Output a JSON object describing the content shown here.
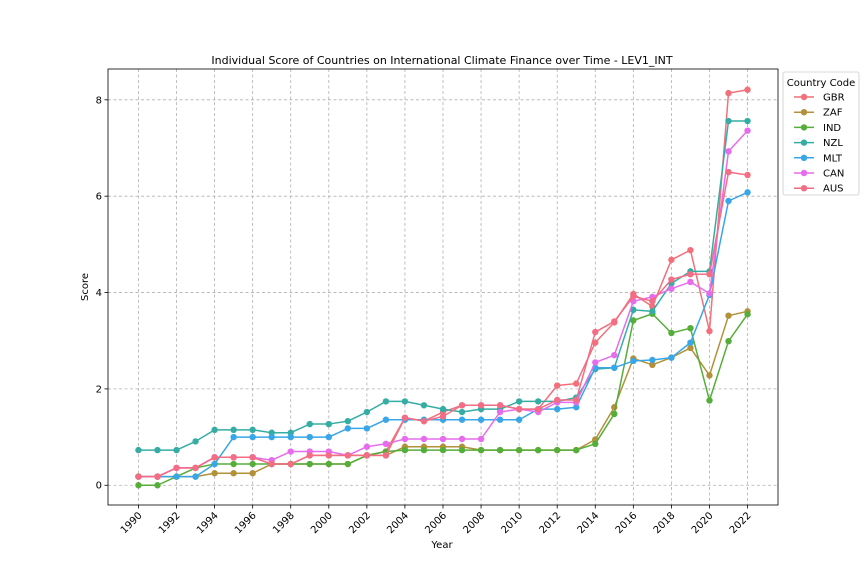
{
  "chart_data": {
    "type": "line",
    "title": "Individual Score of Countries on International Climate Finance over Time - LEV1_INT",
    "xlabel": "Year",
    "ylabel": "Score",
    "xlim": [
      1988.4,
      2023.6
    ],
    "ylim": [
      -0.41,
      8.64
    ],
    "x_ticks": [
      1990,
      1992,
      1994,
      1996,
      1998,
      2000,
      2002,
      2004,
      2006,
      2008,
      2010,
      2012,
      2014,
      2016,
      2018,
      2020,
      2022
    ],
    "x_tick_labels": [
      "1990",
      "1992",
      "1994",
      "1996",
      "1998",
      "2000",
      "2002",
      "2004",
      "2006",
      "2008",
      "2010",
      "2012",
      "2014",
      "2016",
      "2018",
      "2020",
      "2022"
    ],
    "y_ticks": [
      0,
      2,
      4,
      6,
      8
    ],
    "y_tick_labels": [
      "0",
      "2",
      "4",
      "6",
      "8"
    ],
    "grid": true,
    "legend_title": "Country Code",
    "legend_position": "outside-upper-right",
    "x": [
      1990,
      1991,
      1992,
      1993,
      1994,
      1995,
      1996,
      1997,
      1998,
      1999,
      2000,
      2001,
      2002,
      2003,
      2004,
      2005,
      2006,
      2007,
      2008,
      2009,
      2010,
      2011,
      2012,
      2013,
      2014,
      2015,
      2016,
      2017,
      2018,
      2019,
      2020,
      2021,
      2022
    ],
    "series": [
      {
        "name": "GBR",
        "color": "#f1707a",
        "values": [
          0.18,
          0.18,
          0.36,
          0.36,
          0.58,
          0.58,
          0.58,
          0.44,
          0.44,
          0.62,
          0.62,
          0.62,
          0.62,
          0.7,
          1.4,
          1.33,
          1.52,
          1.66,
          1.66,
          1.66,
          1.58,
          1.58,
          2.07,
          2.11,
          2.96,
          3.38,
          3.97,
          3.71,
          4.68,
          4.88,
          3.2,
          8.14,
          8.21
        ]
      },
      {
        "name": "ZAF",
        "color": "#b3913a",
        "values": [
          0.18,
          0.18,
          0.18,
          0.18,
          0.25,
          0.25,
          0.25,
          0.44,
          0.44,
          0.44,
          0.44,
          0.44,
          0.62,
          0.62,
          0.8,
          0.8,
          0.8,
          0.8,
          0.73,
          0.73,
          0.73,
          0.73,
          0.73,
          0.73,
          0.95,
          1.62,
          2.63,
          2.5,
          2.65,
          2.85,
          2.28,
          3.52,
          3.61
        ]
      },
      {
        "name": "IND",
        "color": "#55ae3a",
        "values": [
          0.0,
          0.0,
          0.18,
          0.36,
          0.44,
          0.44,
          0.44,
          0.44,
          0.44,
          0.44,
          0.44,
          0.44,
          0.62,
          0.7,
          0.73,
          0.73,
          0.73,
          0.73,
          0.73,
          0.73,
          0.73,
          0.73,
          0.73,
          0.73,
          0.86,
          1.48,
          3.42,
          3.56,
          3.16,
          3.26,
          1.76,
          2.99,
          3.55
        ]
      },
      {
        "name": "NZL",
        "color": "#36ada4",
        "values": [
          0.73,
          0.73,
          0.73,
          0.91,
          1.15,
          1.15,
          1.15,
          1.09,
          1.09,
          1.27,
          1.27,
          1.33,
          1.52,
          1.74,
          1.74,
          1.66,
          1.58,
          1.52,
          1.58,
          1.58,
          1.74,
          1.74,
          1.74,
          1.82,
          2.41,
          2.44,
          3.64,
          3.61,
          4.19,
          4.44,
          4.44,
          7.56,
          7.56
        ]
      },
      {
        "name": "MLT",
        "color": "#38a6e7",
        "values": [
          0.18,
          0.18,
          0.18,
          0.18,
          0.44,
          1.0,
          1.0,
          1.0,
          1.0,
          1.0,
          1.0,
          1.18,
          1.18,
          1.36,
          1.36,
          1.36,
          1.36,
          1.36,
          1.36,
          1.36,
          1.36,
          1.58,
          1.58,
          1.62,
          2.44,
          2.44,
          2.58,
          2.6,
          2.65,
          2.96,
          3.95,
          5.9,
          6.08
        ]
      },
      {
        "name": "CAN",
        "color": "#e66ced",
        "values": [
          0.18,
          0.18,
          0.36,
          0.36,
          0.58,
          0.58,
          0.58,
          0.52,
          0.7,
          0.7,
          0.7,
          0.62,
          0.8,
          0.86,
          0.96,
          0.96,
          0.96,
          0.96,
          0.96,
          1.52,
          1.58,
          1.52,
          1.72,
          1.72,
          2.55,
          2.7,
          3.82,
          3.91,
          4.08,
          4.22,
          3.98,
          6.93,
          7.36
        ]
      },
      {
        "name": "AUS",
        "color": "#f36d85",
        "values": [
          0.18,
          0.18,
          0.36,
          0.36,
          0.58,
          0.58,
          0.58,
          0.44,
          0.44,
          0.62,
          0.62,
          0.62,
          0.62,
          0.62,
          1.4,
          1.33,
          1.43,
          1.66,
          1.66,
          1.66,
          1.58,
          1.58,
          1.77,
          1.77,
          3.18,
          3.4,
          3.92,
          3.82,
          4.27,
          4.38,
          4.38,
          6.5,
          6.44
        ]
      }
    ]
  }
}
